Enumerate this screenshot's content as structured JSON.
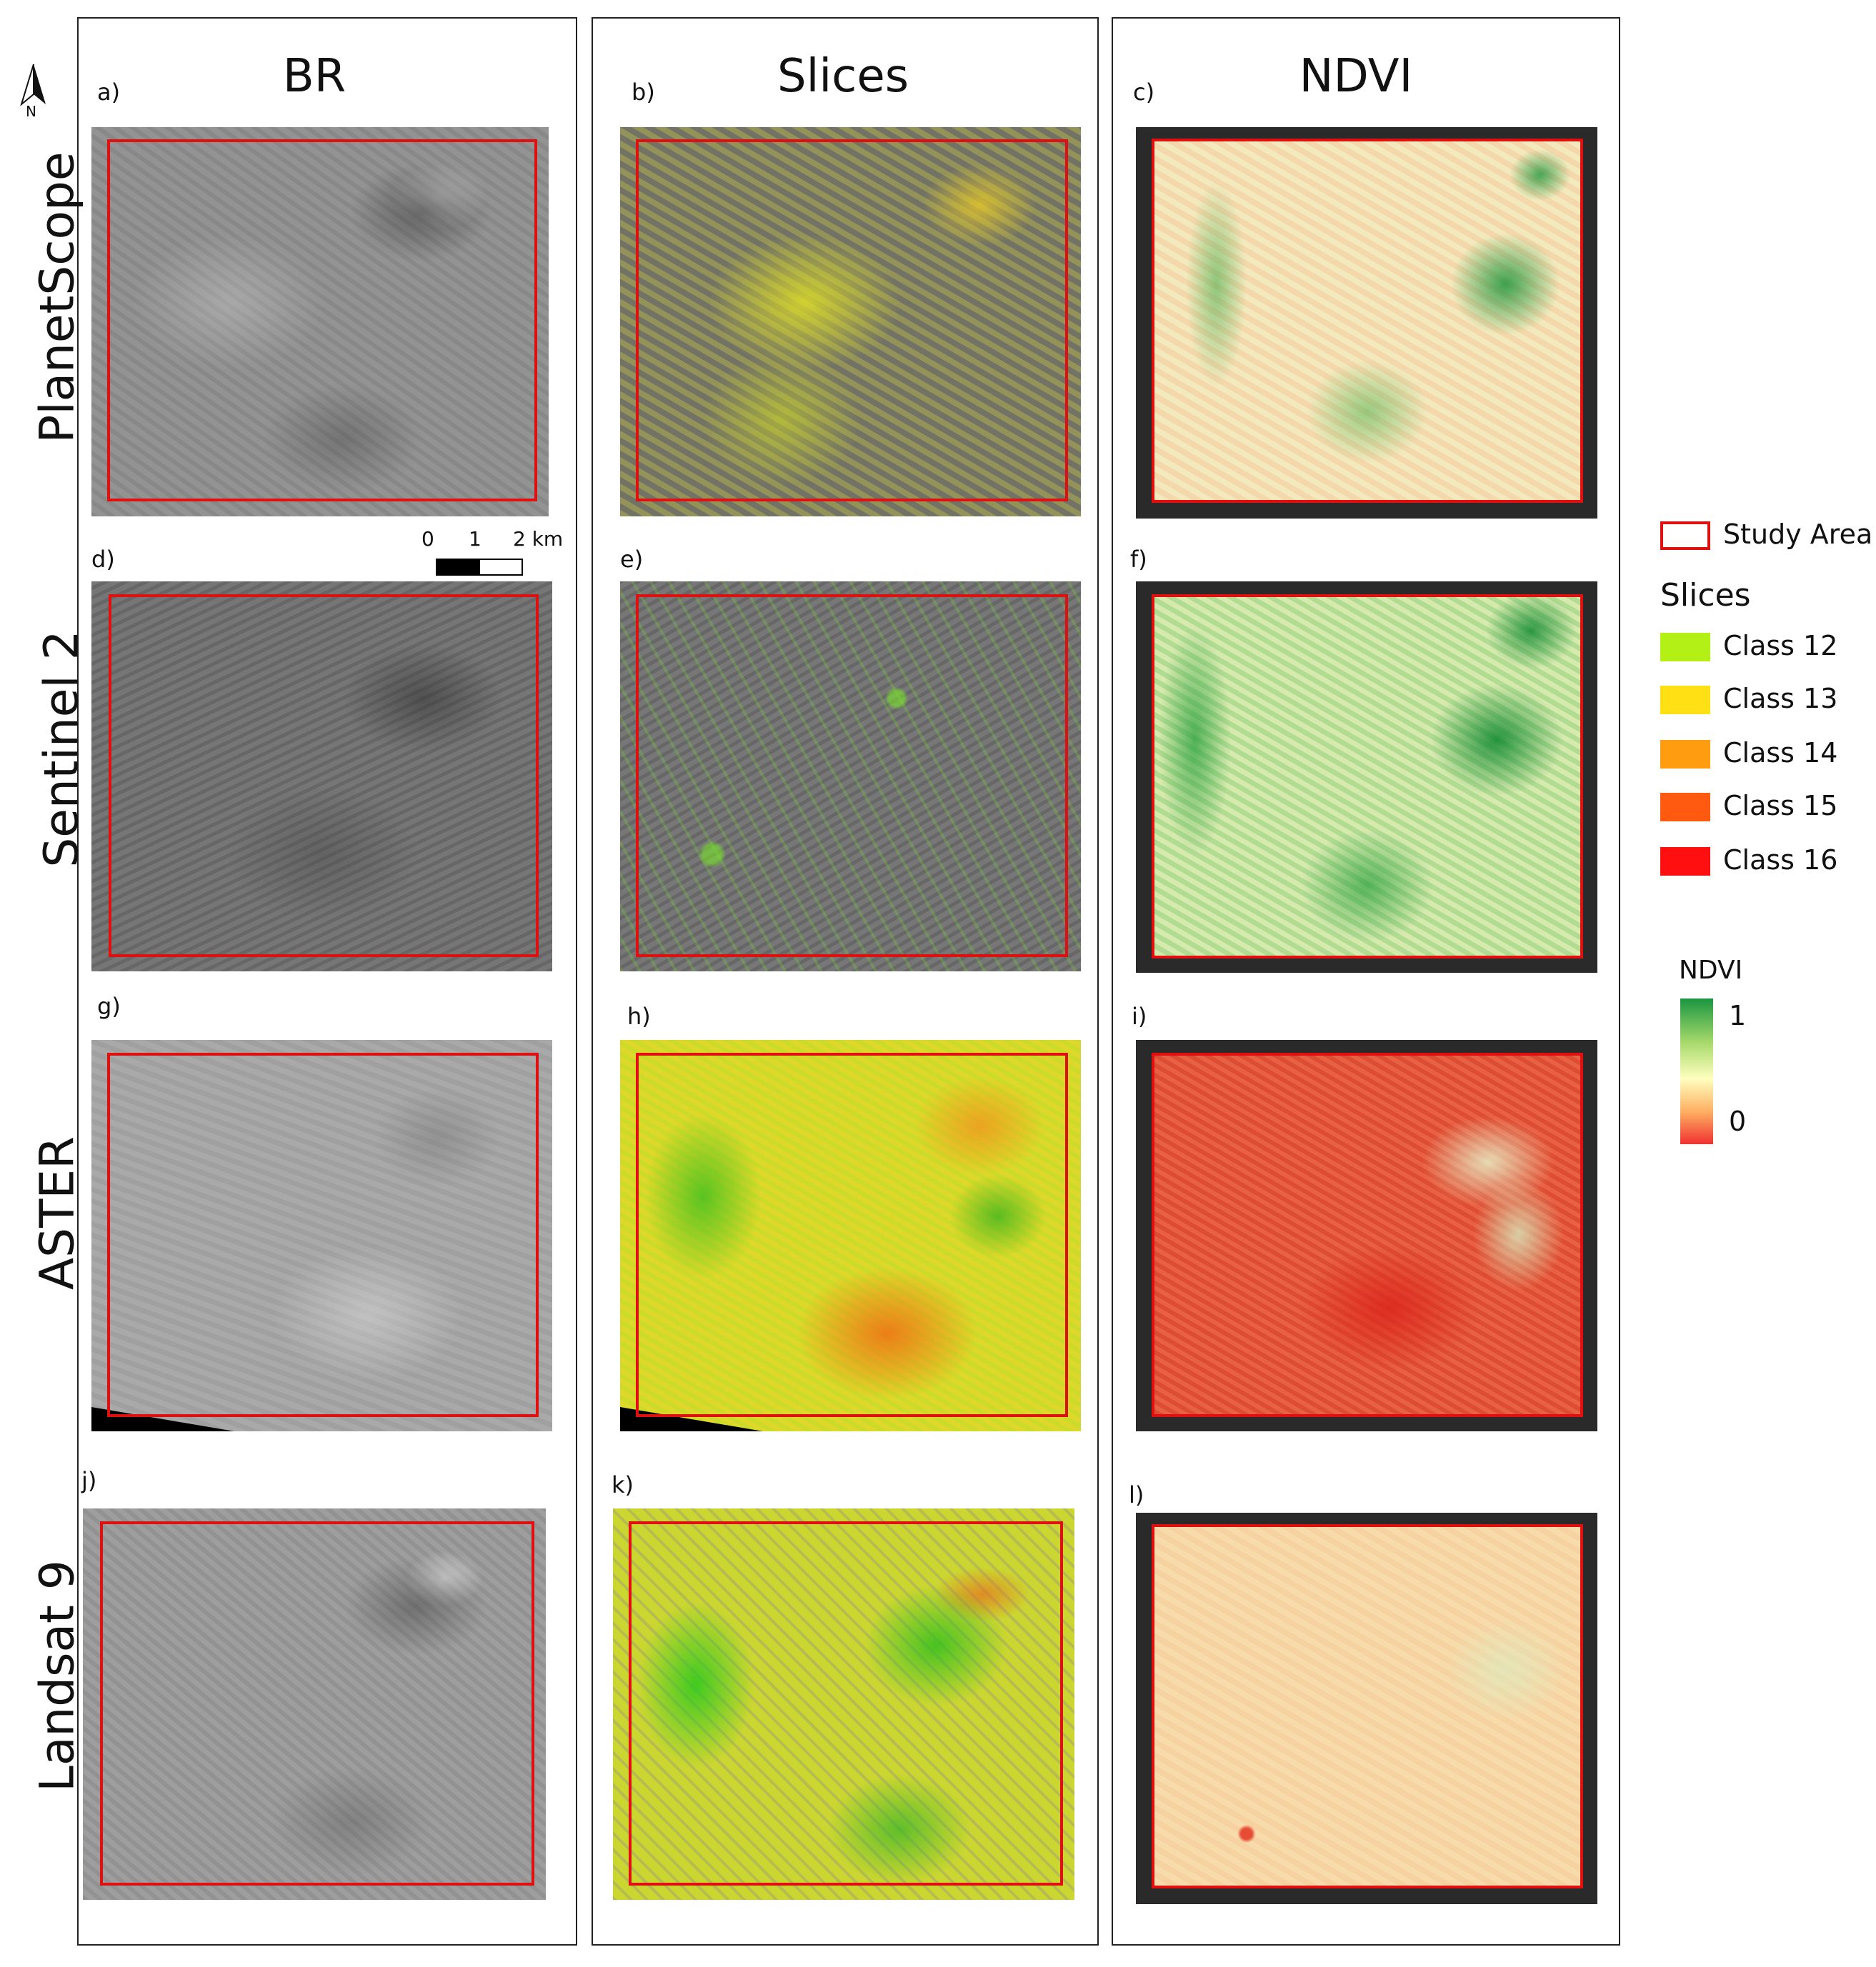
{
  "columns": [
    {
      "header": "BR"
    },
    {
      "header": "Slices"
    },
    {
      "header": "NDVI"
    }
  ],
  "rows": [
    {
      "label": "PlanetScope"
    },
    {
      "label": "Sentinel 2"
    },
    {
      "label": "ASTER"
    },
    {
      "label": "Landsat 9"
    }
  ],
  "panels": [
    "a)",
    "b)",
    "c)",
    "d)",
    "e)",
    "f)",
    "g)",
    "h)",
    "i)",
    "j)",
    "k)",
    "l)"
  ],
  "north_arrow": {
    "label": "N",
    "icon": "north-arrow-icon"
  },
  "scale_bar": {
    "ticks": [
      "0",
      "1",
      "2 km"
    ]
  },
  "legend": {
    "study_area": {
      "label": "Study Area",
      "color": "#e01010"
    },
    "slices_title": "Slices",
    "classes": [
      {
        "label": "Class 12",
        "color": "#b2f016"
      },
      {
        "label": "Class 13",
        "color": "#ffe014"
      },
      {
        "label": "Class 14",
        "color": "#ff9c10"
      },
      {
        "label": "Class 15",
        "color": "#ff5a10"
      },
      {
        "label": "Class 16",
        "color": "#ff0f10"
      }
    ],
    "ndvi_title": "NDVI",
    "ndvi_max": "1",
    "ndvi_min": "0",
    "ndvi_ramp": [
      "#1a9641",
      "#a6d96a",
      "#ffffbf",
      "#fdae61",
      "#f03030"
    ]
  }
}
